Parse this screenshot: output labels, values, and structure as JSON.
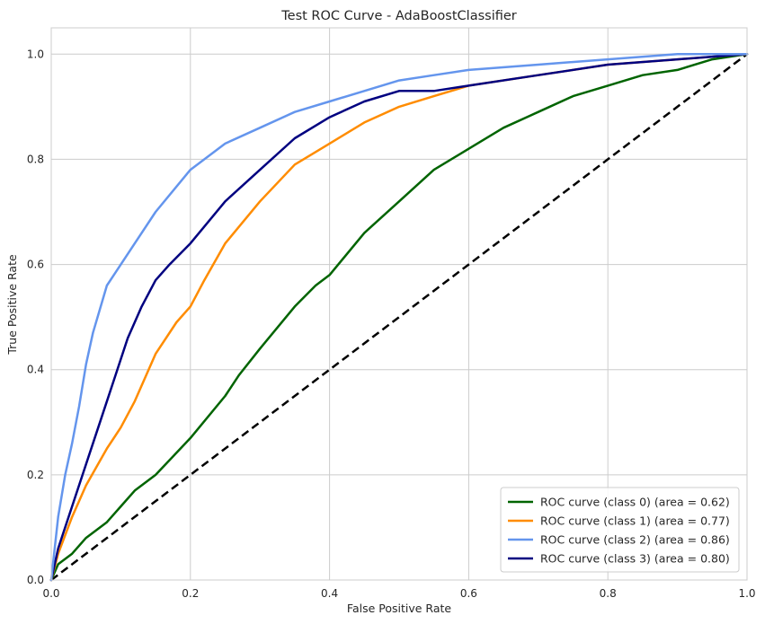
{
  "chart_data": {
    "type": "line",
    "title": "Test ROC Curve - AdaBoostClassifier",
    "xlabel": "False Positive Rate",
    "ylabel": "True Positive Rate",
    "xlim": [
      0,
      1
    ],
    "ylim": [
      0,
      1.05
    ],
    "x_ticks": [
      0,
      0.2,
      0.4,
      0.6,
      0.8,
      1
    ],
    "x_tick_labels": [
      "0.0",
      "0.2",
      "0.4",
      "0.6",
      "0.8",
      "1.0"
    ],
    "y_ticks": [
      0,
      0.2,
      0.4,
      0.6,
      0.8,
      1
    ],
    "y_tick_labels": [
      "0.0",
      "0.2",
      "0.4",
      "0.6",
      "0.8",
      "1.0"
    ],
    "grid": true,
    "legend_position": "lower-right",
    "series": [
      {
        "name": "ROC curve (class 0) (area = 0.62)",
        "color": "#006400",
        "x": [
          0,
          0.01,
          0.03,
          0.05,
          0.08,
          0.1,
          0.12,
          0.15,
          0.2,
          0.25,
          0.27,
          0.3,
          0.35,
          0.38,
          0.4,
          0.45,
          0.5,
          0.55,
          0.6,
          0.65,
          0.7,
          0.75,
          0.8,
          0.85,
          0.9,
          0.95,
          1
        ],
        "y": [
          0,
          0.03,
          0.05,
          0.08,
          0.11,
          0.14,
          0.17,
          0.2,
          0.27,
          0.35,
          0.39,
          0.44,
          0.52,
          0.56,
          0.58,
          0.66,
          0.72,
          0.78,
          0.82,
          0.86,
          0.89,
          0.92,
          0.94,
          0.96,
          0.97,
          0.99,
          1
        ]
      },
      {
        "name": "ROC curve (class 1) (area = 0.77)",
        "color": "#FF8C00",
        "x": [
          0,
          0.01,
          0.03,
          0.05,
          0.08,
          0.1,
          0.12,
          0.15,
          0.18,
          0.2,
          0.22,
          0.25,
          0.3,
          0.35,
          0.4,
          0.45,
          0.5,
          0.55,
          0.6,
          0.7,
          0.8,
          0.9,
          1
        ],
        "y": [
          0,
          0.05,
          0.12,
          0.18,
          0.25,
          0.29,
          0.34,
          0.43,
          0.49,
          0.52,
          0.57,
          0.64,
          0.72,
          0.79,
          0.83,
          0.87,
          0.9,
          0.92,
          0.94,
          0.96,
          0.98,
          0.99,
          1
        ]
      },
      {
        "name": "ROC curve (class 2) (area = 0.86)",
        "color": "#6495ED",
        "x": [
          0,
          0.01,
          0.02,
          0.03,
          0.04,
          0.05,
          0.06,
          0.08,
          0.1,
          0.12,
          0.15,
          0.2,
          0.25,
          0.3,
          0.35,
          0.4,
          0.45,
          0.5,
          0.55,
          0.6,
          0.7,
          0.8,
          0.9,
          1
        ],
        "y": [
          0,
          0.12,
          0.2,
          0.26,
          0.33,
          0.41,
          0.47,
          0.56,
          0.6,
          0.64,
          0.7,
          0.78,
          0.83,
          0.86,
          0.89,
          0.91,
          0.93,
          0.95,
          0.96,
          0.97,
          0.98,
          0.99,
          1,
          1
        ]
      },
      {
        "name": "ROC curve (class 3) (area = 0.80)",
        "color": "#000080",
        "x": [
          0,
          0.01,
          0.03,
          0.05,
          0.07,
          0.09,
          0.11,
          0.13,
          0.15,
          0.17,
          0.2,
          0.25,
          0.3,
          0.35,
          0.4,
          0.45,
          0.5,
          0.55,
          0.6,
          0.7,
          0.8,
          0.9,
          1
        ],
        "y": [
          0,
          0.06,
          0.14,
          0.22,
          0.3,
          0.38,
          0.46,
          0.52,
          0.57,
          0.6,
          0.64,
          0.72,
          0.78,
          0.84,
          0.88,
          0.91,
          0.93,
          0.93,
          0.94,
          0.96,
          0.98,
          0.99,
          1
        ]
      },
      {
        "name": "",
        "color": "#000000",
        "dashed": true,
        "x": [
          0,
          1
        ],
        "y": [
          0,
          1
        ]
      }
    ]
  }
}
